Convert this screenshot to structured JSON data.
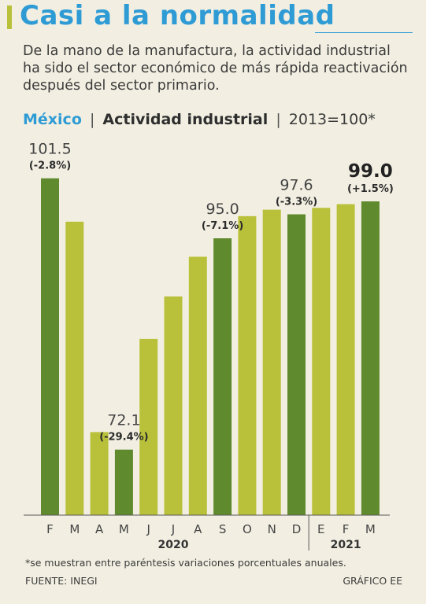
{
  "title": "Casi a la normalidad",
  "subtitle_lines": [
    "De la mano de la manufactura, la actividad industrial",
    "ha sido el sector económico de más rápida reactivación",
    "después del sector primario."
  ],
  "chart_header": {
    "country": "México",
    "separator": "|",
    "indicator": "Actividad industrial",
    "base": "2013=100*"
  },
  "colors": {
    "title": "#2f9bd5",
    "bar_light": "#b9c13a",
    "bar_dark": "#5f8a2d",
    "background": "#f2efe2"
  },
  "chart_data": {
    "type": "bar",
    "categories": [
      "F",
      "M",
      "A",
      "M",
      "J",
      "J",
      "A",
      "S",
      "O",
      "N",
      "D",
      "E",
      "F",
      "M"
    ],
    "years": [
      {
        "label": "2020",
        "from": 0,
        "to": 10
      },
      {
        "label": "2021",
        "from": 11,
        "to": 13
      }
    ],
    "values": [
      101.5,
      96.8,
      74.0,
      72.1,
      84.1,
      88.7,
      93.0,
      95.0,
      97.4,
      98.1,
      97.6,
      98.3,
      98.7,
      99.0
    ],
    "highlight_indices": [
      0,
      3,
      7,
      10,
      13
    ],
    "annotations": [
      {
        "index": 0,
        "value": "101.5",
        "change": "(-2.8%)"
      },
      {
        "index": 3,
        "value": "72.1",
        "change": "(-29.4%)"
      },
      {
        "index": 7,
        "value": "95.0",
        "change": "(-7.1%)"
      },
      {
        "index": 10,
        "value": "97.6",
        "change": "(-3.3%)"
      },
      {
        "index": 13,
        "value": "99.0",
        "change": "(+1.5%)",
        "emphasis": true
      }
    ],
    "ylim": [
      65,
      102.5
    ]
  },
  "footnote": "*se muestran entre paréntesis variaciones porcentuales anuales.",
  "source": "FUENTE: INEGI",
  "credit": "GRÁFICO EE"
}
